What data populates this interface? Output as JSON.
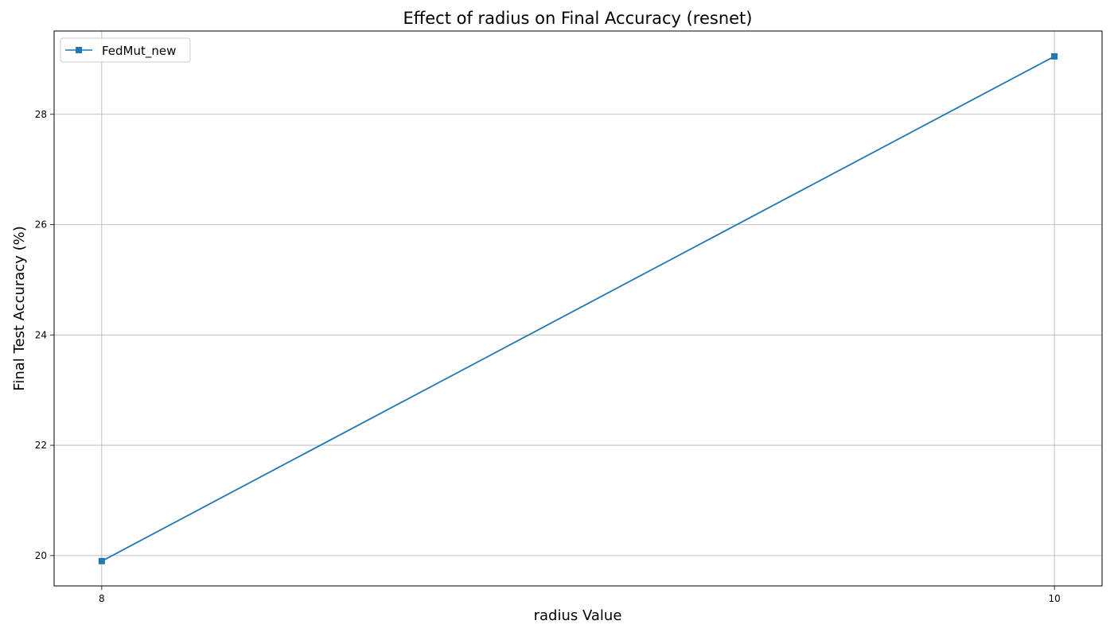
{
  "chart_data": {
    "type": "line",
    "title": "Effect of radius on Final Accuracy (resnet)",
    "xlabel": "radius Value",
    "ylabel": "Final Test Accuracy (%)",
    "x_ticks": [
      8,
      10
    ],
    "y_ticks": [
      20,
      22,
      24,
      26,
      28
    ],
    "xlim": [
      7.9,
      10.1
    ],
    "ylim": [
      19.45,
      29.51
    ],
    "grid": true,
    "legend_position": "upper-left",
    "series": [
      {
        "name": "FedMut_new",
        "color": "#1f77b4",
        "marker": "square",
        "x": [
          8,
          10
        ],
        "y": [
          19.9,
          29.05
        ]
      }
    ]
  }
}
